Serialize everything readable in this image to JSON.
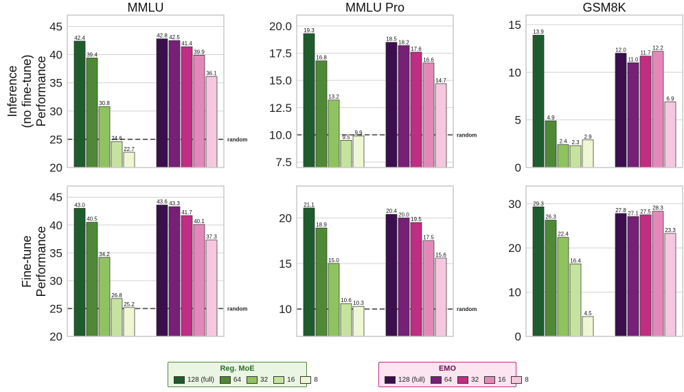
{
  "colors": {
    "reg": [
      "#1f5c2d",
      "#4e8a35",
      "#8fc35f",
      "#c5e39e",
      "#eef6d4"
    ],
    "emo": [
      "#3b0f4e",
      "#762077",
      "#c02d83",
      "#e389b9",
      "#f5c8df"
    ],
    "reg_legend_bg": "#eaf5e3",
    "emo_legend_bg": "#fce4f0",
    "reg_title": "#2f6b2f",
    "emo_title": "#6b1050"
  },
  "chart_data": [
    {
      "type": "bar",
      "title": "MMLU",
      "row": "inference",
      "ylim": [
        20,
        47
      ],
      "yticks": [
        "20",
        "25",
        "30",
        "35",
        "40",
        "45"
      ],
      "ytick_values": [
        20,
        25,
        30,
        35,
        40,
        45
      ],
      "random": 25,
      "random_label": "random",
      "reg_values": [
        42.4,
        39.4,
        30.8,
        24.6,
        22.7
      ],
      "reg_labels": [
        "42.4",
        "39.4",
        "30.8",
        "24.6",
        "22.7"
      ],
      "emo_values": [
        42.8,
        42.5,
        41.4,
        39.9,
        36.1
      ],
      "emo_labels": [
        "42.8",
        "42.5",
        "41.4",
        "39.9",
        "36.1"
      ]
    },
    {
      "type": "bar",
      "title": "MMLU Pro",
      "row": "inference",
      "ylim": [
        7,
        21
      ],
      "yticks": [
        "7.5",
        "10.0",
        "12.5",
        "15.0",
        "17.5",
        "20.0"
      ],
      "ytick_values": [
        7.5,
        10,
        12.5,
        15,
        17.5,
        20
      ],
      "random": 10,
      "random_label": "random",
      "reg_values": [
        19.3,
        16.8,
        13.2,
        9.5,
        9.9
      ],
      "reg_labels": [
        "19.3",
        "16.8",
        "13.2",
        "9.5",
        "9.9"
      ],
      "emo_values": [
        18.5,
        18.2,
        17.6,
        16.6,
        14.7
      ],
      "emo_labels": [
        "18.5",
        "18.2",
        "17.6",
        "16.6",
        "14.7"
      ]
    },
    {
      "type": "bar",
      "title": "GSM8K",
      "row": "inference",
      "ylim": [
        0,
        16
      ],
      "yticks": [
        "0",
        "5",
        "10",
        "15"
      ],
      "ytick_values": [
        0,
        5,
        10,
        15
      ],
      "random": null,
      "random_label": "",
      "reg_values": [
        13.9,
        4.9,
        2.4,
        2.3,
        2.9
      ],
      "reg_labels": [
        "13.9",
        "4.9",
        "2.4",
        "2.3",
        "2.9"
      ],
      "emo_values": [
        12.0,
        11.0,
        11.7,
        12.2,
        6.9
      ],
      "emo_labels": [
        "12.0",
        "11.0",
        "11.7",
        "12.2",
        "6.9"
      ]
    },
    {
      "type": "bar",
      "title": "",
      "row": "finetune",
      "ylim": [
        20,
        47
      ],
      "yticks": [
        "20",
        "25",
        "30",
        "35",
        "40",
        "45"
      ],
      "ytick_values": [
        20,
        25,
        30,
        35,
        40,
        45
      ],
      "random": 25,
      "random_label": "random",
      "reg_values": [
        43.0,
        40.5,
        34.2,
        26.8,
        25.2
      ],
      "reg_labels": [
        "43.0",
        "40.5",
        "34.2",
        "26.8",
        "25.2"
      ],
      "emo_values": [
        43.6,
        43.3,
        41.7,
        40.1,
        37.3
      ],
      "emo_labels": [
        "43.6",
        "43.3",
        "41.7",
        "40.1",
        "37.3"
      ]
    },
    {
      "type": "bar",
      "title": "",
      "row": "finetune",
      "ylim": [
        7,
        23.5
      ],
      "yticks": [
        "10",
        "15",
        "20"
      ],
      "ytick_values": [
        10,
        15,
        20
      ],
      "random": 10,
      "random_label": "random",
      "reg_values": [
        21.1,
        18.9,
        15.0,
        10.6,
        10.3
      ],
      "reg_labels": [
        "21.1",
        "18.9",
        "15.0",
        "10.6",
        "10.3"
      ],
      "emo_values": [
        20.4,
        20.0,
        19.5,
        17.5,
        15.6
      ],
      "emo_labels": [
        "20.4",
        "20.0",
        "19.5",
        "17.5",
        "15.6"
      ]
    },
    {
      "type": "bar",
      "title": "",
      "row": "finetune",
      "ylim": [
        0,
        34
      ],
      "yticks": [
        "0",
        "10",
        "20",
        "30"
      ],
      "ytick_values": [
        0,
        10,
        20,
        30
      ],
      "random": null,
      "random_label": "",
      "reg_values": [
        29.3,
        26.3,
        22.4,
        16.4,
        4.5
      ],
      "reg_labels": [
        "29.3",
        "26.3",
        "22.4",
        "16.4",
        "4.5"
      ],
      "emo_values": [
        27.8,
        27.1,
        27.5,
        28.3,
        23.3
      ],
      "emo_labels": [
        "27.8",
        "27.1",
        "27.5",
        "28.3",
        "23.3"
      ]
    }
  ],
  "row_labels": {
    "inference": [
      "Inference",
      "(no fine-tune)",
      "Performance"
    ],
    "finetune": [
      "Fine-tune",
      "Performance"
    ]
  },
  "legend": {
    "reg_title": "Reg. MoE",
    "emo_title": "EMO",
    "entries": [
      "128 (full)",
      "64",
      "32",
      "16",
      "8"
    ]
  }
}
